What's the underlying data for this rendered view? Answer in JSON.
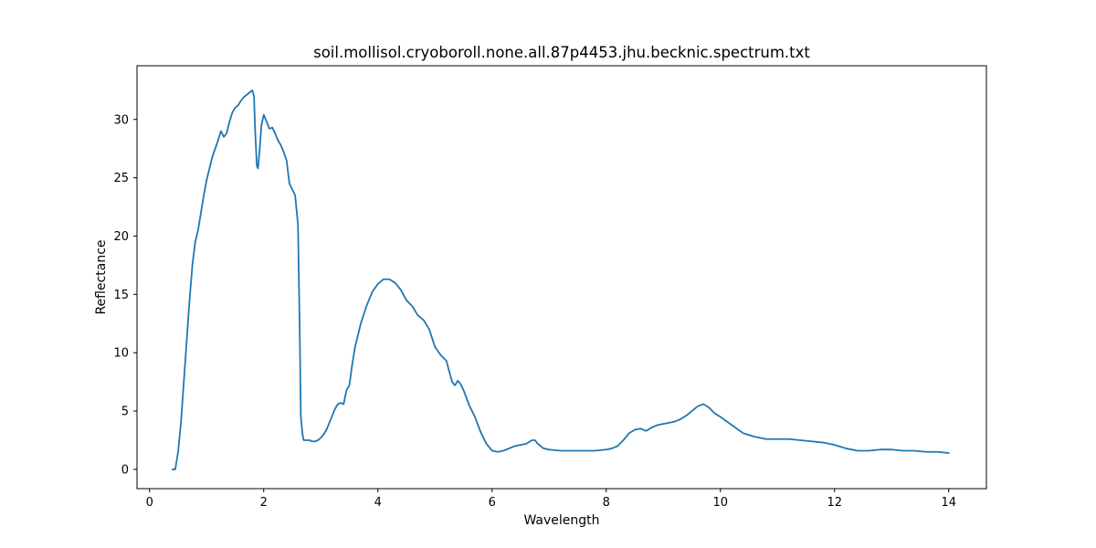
{
  "chart_data": {
    "type": "line",
    "title": "soil.mollisol.cryoboroll.none.all.87p4453.jhu.becknic.spectrum.txt",
    "xlabel": "Wavelength",
    "ylabel": "Reflectance",
    "xlim": [
      -0.22,
      14.66
    ],
    "ylim": [
      -1.65,
      34.6
    ],
    "xticks": [
      0,
      2,
      4,
      6,
      8,
      10,
      12,
      14
    ],
    "yticks": [
      0,
      5,
      10,
      15,
      20,
      25,
      30
    ],
    "grid": false,
    "legend": "none",
    "series": [
      {
        "color": "#1f77b4",
        "x": [
          0.4,
          0.45,
          0.5,
          0.55,
          0.6,
          0.65,
          0.7,
          0.75,
          0.8,
          0.85,
          0.9,
          0.95,
          1.0,
          1.05,
          1.1,
          1.15,
          1.2,
          1.25,
          1.3,
          1.35,
          1.4,
          1.45,
          1.5,
          1.55,
          1.6,
          1.65,
          1.7,
          1.75,
          1.8,
          1.83,
          1.85,
          1.88,
          1.9,
          1.93,
          1.96,
          2.0,
          2.05,
          2.1,
          2.15,
          2.2,
          2.25,
          2.3,
          2.35,
          2.4,
          2.45,
          2.5,
          2.55,
          2.6,
          2.63,
          2.65,
          2.68,
          2.7,
          2.72,
          2.75,
          2.8,
          2.85,
          2.9,
          2.95,
          3.0,
          3.05,
          3.1,
          3.15,
          3.2,
          3.25,
          3.3,
          3.35,
          3.4,
          3.45,
          3.5,
          3.55,
          3.6,
          3.65,
          3.7,
          3.8,
          3.9,
          4.0,
          4.1,
          4.2,
          4.3,
          4.4,
          4.5,
          4.6,
          4.7,
          4.8,
          4.9,
          5.0,
          5.1,
          5.2,
          5.3,
          5.35,
          5.4,
          5.45,
          5.5,
          5.6,
          5.7,
          5.8,
          5.9,
          6.0,
          6.1,
          6.2,
          6.3,
          6.4,
          6.5,
          6.6,
          6.7,
          6.75,
          6.8,
          6.9,
          7.0,
          7.2,
          7.4,
          7.6,
          7.8,
          8.0,
          8.1,
          8.2,
          8.3,
          8.4,
          8.5,
          8.6,
          8.65,
          8.7,
          8.8,
          8.9,
          9.0,
          9.1,
          9.2,
          9.3,
          9.4,
          9.5,
          9.6,
          9.7,
          9.8,
          9.9,
          10.0,
          10.2,
          10.4,
          10.6,
          10.8,
          11.0,
          11.2,
          11.4,
          11.6,
          11.8,
          12.0,
          12.2,
          12.4,
          12.6,
          12.8,
          13.0,
          13.2,
          13.4,
          13.6,
          13.8,
          14.0
        ],
        "y": [
          0.0,
          0.0,
          1.5,
          4.0,
          7.5,
          11.0,
          14.5,
          17.5,
          19.5,
          20.5,
          22.0,
          23.5,
          24.8,
          25.8,
          26.8,
          27.5,
          28.2,
          29.0,
          28.5,
          28.8,
          29.8,
          30.6,
          31.0,
          31.2,
          31.6,
          31.9,
          32.1,
          32.3,
          32.5,
          32.0,
          29.0,
          26.0,
          25.8,
          27.5,
          29.5,
          30.4,
          29.8,
          29.2,
          29.3,
          28.8,
          28.2,
          27.8,
          27.2,
          26.5,
          24.5,
          24.0,
          23.5,
          21.0,
          12.0,
          4.5,
          3.0,
          2.5,
          2.5,
          2.5,
          2.5,
          2.4,
          2.4,
          2.5,
          2.7,
          3.0,
          3.4,
          4.0,
          4.6,
          5.2,
          5.6,
          5.7,
          5.6,
          6.8,
          7.2,
          9.0,
          10.5,
          11.5,
          12.5,
          14.0,
          15.2,
          15.9,
          16.3,
          16.3,
          16.0,
          15.4,
          14.5,
          14.0,
          13.2,
          12.8,
          12.0,
          10.5,
          9.8,
          9.3,
          7.5,
          7.2,
          7.6,
          7.3,
          6.8,
          5.5,
          4.5,
          3.2,
          2.2,
          1.6,
          1.5,
          1.6,
          1.8,
          2.0,
          2.1,
          2.2,
          2.5,
          2.5,
          2.2,
          1.8,
          1.7,
          1.6,
          1.6,
          1.6,
          1.6,
          1.7,
          1.8,
          2.0,
          2.5,
          3.1,
          3.4,
          3.5,
          3.4,
          3.3,
          3.6,
          3.8,
          3.9,
          4.0,
          4.1,
          4.3,
          4.6,
          5.0,
          5.4,
          5.6,
          5.3,
          4.8,
          4.5,
          3.8,
          3.1,
          2.8,
          2.6,
          2.6,
          2.6,
          2.5,
          2.4,
          2.3,
          2.1,
          1.8,
          1.6,
          1.6,
          1.7,
          1.7,
          1.6,
          1.6,
          1.5,
          1.5,
          1.4
        ]
      }
    ]
  }
}
